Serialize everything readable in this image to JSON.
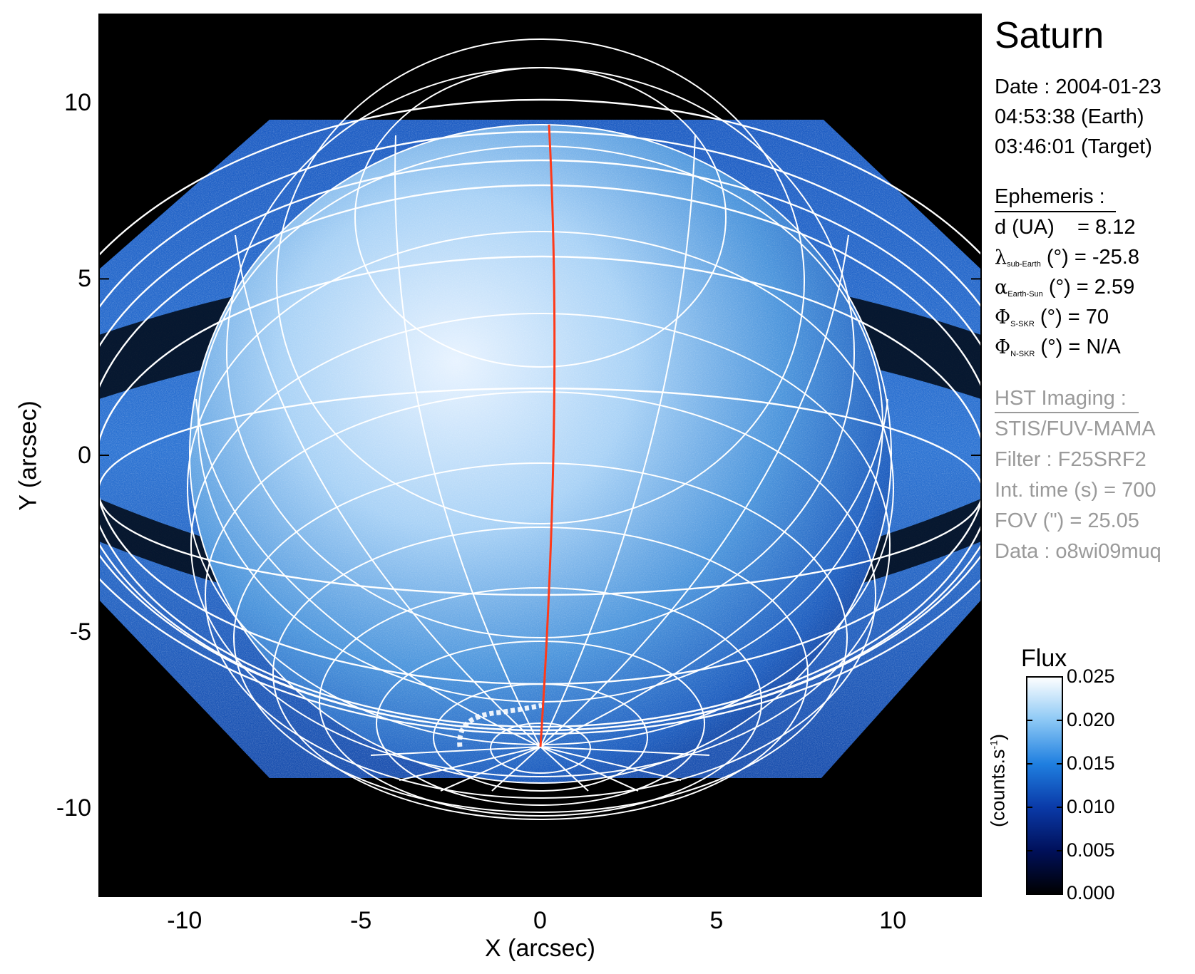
{
  "planet": "Saturn",
  "observation": {
    "date_line": "Date : 2004-01-23",
    "earth_time": "04:53:38 (Earth)",
    "target_time": "03:46:01 (Target)"
  },
  "ephemeris": {
    "header": "Ephemeris :",
    "rows": [
      {
        "symbol": "",
        "label": "d (UA)",
        "sub": "",
        "unit": "",
        "value": "= 8.12"
      },
      {
        "symbol": "λ",
        "label": "",
        "sub": "sub-Earth",
        "unit": "(°)",
        "value": "= -25.8"
      },
      {
        "symbol": "α",
        "label": "",
        "sub": "Earth-Sun",
        "unit": "(°)",
        "value": "= 2.59"
      },
      {
        "symbol": "Φ",
        "label": "",
        "sub": "S-SKR",
        "unit": "(°)",
        "value": "= 70"
      },
      {
        "symbol": "Φ",
        "label": "",
        "sub": "N-SKR",
        "unit": "(°)",
        "value": "= N/A"
      }
    ]
  },
  "hst_imaging": {
    "header": "HST Imaging :",
    "lines": [
      "STIS/FUV-MAMA",
      "Filter : F25SRF2",
      "Int. time (s) = 700",
      "FOV (\") = 25.05",
      "Data : o8wi09muq"
    ]
  },
  "axes": {
    "xlabel": "X (arcsec)",
    "ylabel": "Y (arcsec)",
    "xlim": [
      -12.5,
      12.5
    ],
    "ylim": [
      -12.5,
      12.5
    ],
    "x_ticks": [
      {
        "value": -10,
        "label": "-10"
      },
      {
        "value": -5,
        "label": "-5"
      },
      {
        "value": 0,
        "label": "0"
      },
      {
        "value": 5,
        "label": "5"
      },
      {
        "value": 10,
        "label": "10"
      }
    ],
    "y_ticks": [
      {
        "value": 10,
        "label": "10"
      },
      {
        "value": 5,
        "label": "5"
      },
      {
        "value": 0,
        "label": "0"
      },
      {
        "value": -5,
        "label": "-5"
      },
      {
        "value": -10,
        "label": "-10"
      }
    ]
  },
  "colorbar": {
    "title": "Flux",
    "unit_label": "(counts.s",
    "unit_sup": "-1",
    "unit_close": ")",
    "ticks": [
      {
        "value": 0.025,
        "label": "0.025"
      },
      {
        "value": 0.02,
        "label": "0.020"
      },
      {
        "value": 0.015,
        "label": "0.015"
      },
      {
        "value": 0.01,
        "label": "0.010"
      },
      {
        "value": 0.005,
        "label": "0.005"
      },
      {
        "value": 0.0,
        "label": "0.000"
      }
    ],
    "range": [
      0.0,
      0.025
    ],
    "colors": [
      "#000000",
      "#00105a",
      "#0a3aa8",
      "#1f7fe0",
      "#8cc8f5",
      "#ffffff"
    ]
  },
  "colors": {
    "background": "#000000",
    "grid_lines": "#ffffff",
    "central_meridian": "#ff3a1a"
  }
}
